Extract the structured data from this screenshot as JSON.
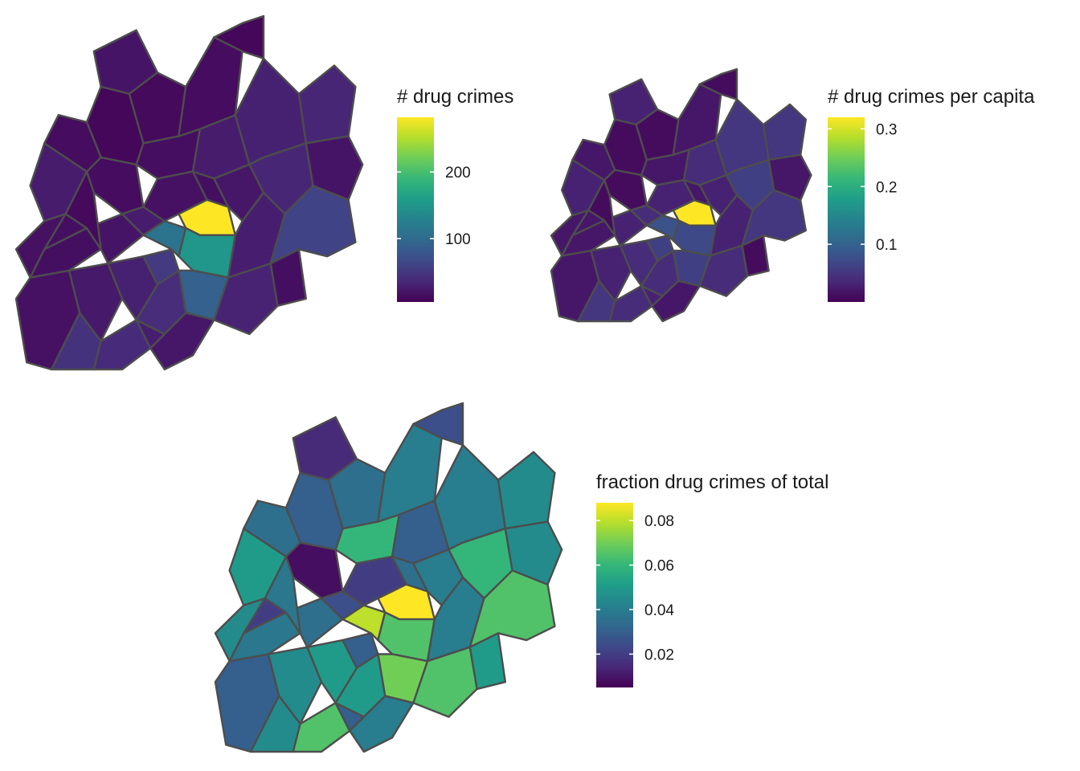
{
  "colors": {
    "viridis": [
      "#440154",
      "#482878",
      "#3E4A89",
      "#31688E",
      "#26828E",
      "#1F9E89",
      "#35B779",
      "#6DCD59",
      "#B4DE2C",
      "#FDE725"
    ],
    "border": "#4d4d4d"
  },
  "maps": [
    {
      "id": "drug-count",
      "legend": {
        "title": "# drug crimes",
        "min": 5,
        "max": 282,
        "ticks": [
          {
            "value": 100,
            "label": "100"
          },
          {
            "value": 200,
            "label": "200"
          }
        ]
      },
      "tract_values": [
        18,
        24,
        30,
        52,
        45,
        38,
        14,
        16,
        20,
        26,
        20,
        12,
        14,
        10,
        15,
        26,
        30,
        34,
        18,
        16,
        22,
        34,
        282,
        110,
        150,
        90,
        40,
        28,
        32,
        60,
        16,
        12,
        18,
        28,
        22,
        16,
        10,
        14,
        26,
        20
      ]
    },
    {
      "id": "drug-per-capita",
      "legend": {
        "title": "# drug crimes per capita",
        "min": 0.0,
        "max": 0.32,
        "ticks": [
          {
            "value": 0.1,
            "label": "0.1"
          },
          {
            "value": 0.2,
            "label": "0.2"
          },
          {
            "value": 0.3,
            "label": "0.3"
          }
        ]
      },
      "tract_values": [
        0.02,
        0.03,
        0.04,
        0.06,
        0.05,
        0.04,
        0.01,
        0.02,
        0.03,
        0.04,
        0.03,
        0.01,
        0.02,
        0.01,
        0.02,
        0.04,
        0.05,
        0.05,
        0.03,
        0.02,
        0.03,
        0.06,
        0.32,
        0.08,
        0.07,
        0.06,
        0.04,
        0.03,
        0.04,
        0.05,
        0.02,
        0.01,
        0.02,
        0.03,
        0.02,
        0.01,
        0.01,
        0.02,
        0.03,
        0.02
      ]
    },
    {
      "id": "drug-fraction",
      "legend": {
        "title": "fraction drug crimes of total",
        "min": 0.005,
        "max": 0.088,
        "ticks": [
          {
            "value": 0.02,
            "label": "0.02"
          },
          {
            "value": 0.04,
            "label": "0.04"
          },
          {
            "value": 0.06,
            "label": "0.06"
          },
          {
            "value": 0.08,
            "label": "0.08"
          }
        ]
      },
      "tract_values": [
        0.03,
        0.045,
        0.05,
        0.03,
        0.045,
        0.065,
        0.008,
        0.038,
        0.035,
        0.025,
        0.015,
        0.035,
        0.04,
        0.025,
        0.06,
        0.03,
        0.04,
        0.045,
        0.02,
        0.035,
        0.04,
        0.06,
        0.088,
        0.08,
        0.065,
        0.07,
        0.05,
        0.04,
        0.065,
        0.065,
        0.02,
        0.038,
        0.045,
        0.03,
        0.04,
        0.05,
        0.03,
        0.035,
        0.05,
        0.045
      ]
    }
  ]
}
